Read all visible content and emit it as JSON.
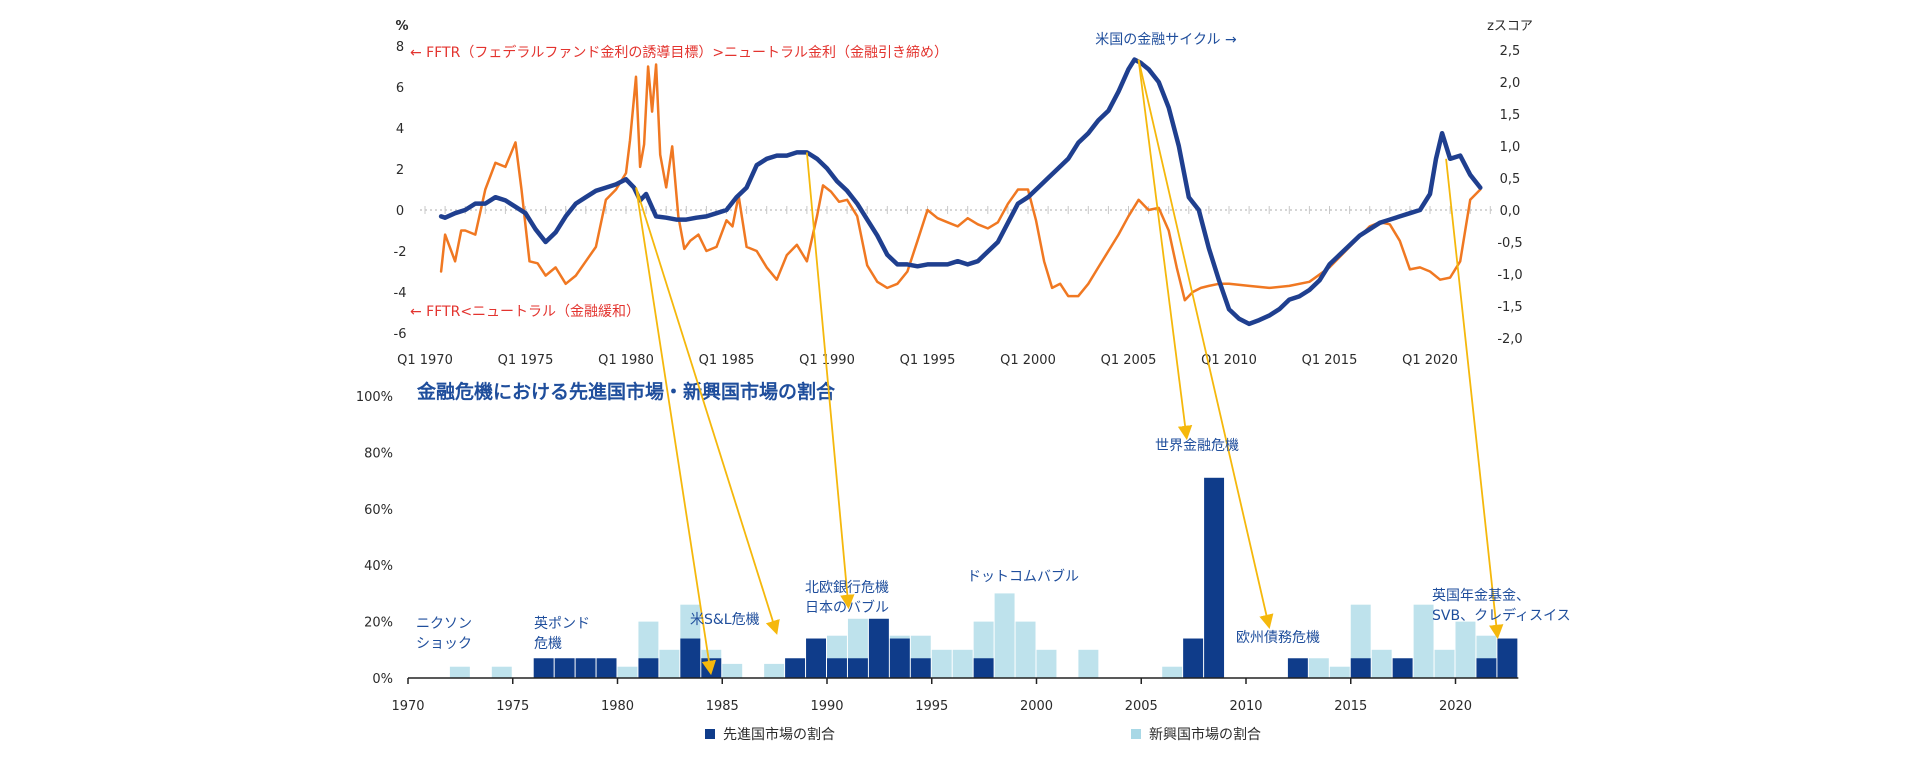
{
  "chart_data": [
    {
      "type": "line",
      "title": "",
      "unit_left": "%",
      "unit_right": "zスコア",
      "x_tick_labels": [
        "Q1 1970",
        "Q1 1975",
        "Q1 1980",
        "Q1 1985",
        "Q1 1990",
        "Q1 1995",
        "Q1 2000",
        "Q1 2005",
        "Q1 2010",
        "Q1 2015",
        "Q1 2020"
      ],
      "left_axis": {
        "ylim": [
          -6,
          8
        ],
        "ticks": [
          "8",
          "6",
          "4",
          "2",
          "0",
          "-2",
          "-4",
          "-6"
        ]
      },
      "right_axis": {
        "ylim": [
          -2.0,
          2.5
        ],
        "ticks": [
          "2,5",
          "2,0",
          "1,5",
          "1,0",
          "0,5",
          "0,0",
          "-0,5",
          "-1,0",
          "-1,5",
          "-2,0"
        ]
      },
      "annotations": {
        "upper_left": "← FFTR（フェデラルファンド金利の誘導目標）>ニュートラル金利（金融引き締め）",
        "lower_left": "← FFTR<ニュートラル（金融緩和）",
        "cycle_label": "米国の金融サイクル →"
      },
      "series": [
        {
          "name": "FFTR − ニュートラル金利 (%)",
          "axis": "left",
          "color": "#f07822",
          "x": [
            1970.8,
            1971.0,
            1971.5,
            1971.8,
            1972.0,
            1972.5,
            1973.0,
            1973.5,
            1974.0,
            1974.5,
            1974.8,
            1975.2,
            1975.6,
            1976.0,
            1976.5,
            1977.0,
            1977.5,
            1978.0,
            1978.5,
            1979.0,
            1979.5,
            1980.0,
            1980.2,
            1980.5,
            1980.7,
            1980.9,
            1981.1,
            1981.3,
            1981.5,
            1981.7,
            1982.0,
            1982.3,
            1982.6,
            1982.9,
            1983.2,
            1983.6,
            1984.0,
            1984.5,
            1985.0,
            1985.3,
            1985.6,
            1986.0,
            1986.5,
            1987.0,
            1987.5,
            1988.0,
            1988.5,
            1989.0,
            1989.5,
            1989.8,
            1990.2,
            1990.6,
            1991.0,
            1991.5,
            1992.0,
            1992.5,
            1993.0,
            1993.5,
            1994.0,
            1994.5,
            1995.0,
            1995.5,
            1996.0,
            1996.5,
            1997.0,
            1997.5,
            1998.0,
            1998.5,
            1999.0,
            1999.5,
            2000.0,
            2000.4,
            2000.8,
            2001.2,
            2001.6,
            2002.0,
            2002.5,
            2003.0,
            2003.5,
            2004.0,
            2004.5,
            2005.0,
            2005.5,
            2006.0,
            2006.5,
            2007.0,
            2007.4,
            2007.8,
            2008.2,
            2008.6,
            2009.0,
            2009.5,
            2010.0,
            2011.0,
            2012.0,
            2013.0,
            2014.0,
            2015.0,
            2016.0,
            2017.0,
            2017.5,
            2018.0,
            2018.5,
            2019.0,
            2019.5,
            2020.0,
            2020.5,
            2021.0,
            2021.5,
            2022.0,
            2022.5
          ],
          "values": [
            -3.0,
            -1.2,
            -2.5,
            -1.0,
            -1.0,
            -1.2,
            1.0,
            2.3,
            2.1,
            3.3,
            1.0,
            -2.5,
            -2.6,
            -3.2,
            -2.8,
            -3.6,
            -3.2,
            -2.5,
            -1.8,
            0.5,
            1.0,
            1.8,
            3.4,
            6.5,
            2.1,
            3.2,
            7.0,
            4.8,
            7.1,
            2.7,
            1.1,
            3.1,
            -0.3,
            -1.9,
            -1.5,
            -1.2,
            -2.0,
            -1.8,
            -0.5,
            -0.8,
            0.7,
            -1.8,
            -2.0,
            -2.8,
            -3.4,
            -2.2,
            -1.7,
            -2.5,
            -0.3,
            1.2,
            0.9,
            0.4,
            0.5,
            -0.3,
            -2.7,
            -3.5,
            -3.8,
            -3.6,
            -3.0,
            -1.5,
            0.0,
            -0.4,
            -0.6,
            -0.8,
            -0.4,
            -0.7,
            -0.9,
            -0.6,
            0.3,
            1.0,
            1.0,
            -0.5,
            -2.5,
            -3.8,
            -3.6,
            -4.2,
            -4.2,
            -3.6,
            -2.8,
            -2.0,
            -1.2,
            -0.3,
            0.5,
            0.0,
            0.1,
            -1.0,
            -2.8,
            -4.4,
            -4.0,
            -3.8,
            -3.7,
            -3.6,
            -3.6,
            -3.7,
            -3.8,
            -3.7,
            -3.5,
            -2.8,
            -1.8,
            -0.8,
            -0.6,
            -0.7,
            -1.5,
            -2.9,
            -2.8,
            -3.0,
            -3.4,
            -3.3,
            -2.5,
            0.5,
            1.0
          ]
        },
        {
          "name": "米国の金融サイクル (zスコア)",
          "axis": "right",
          "color": "#1f3f8f",
          "x": [
            1970.8,
            1971.0,
            1971.5,
            1972.0,
            1972.5,
            1973.0,
            1973.5,
            1974.0,
            1974.5,
            1975.0,
            1975.5,
            1976.0,
            1976.5,
            1977.0,
            1977.5,
            1978.0,
            1978.5,
            1979.0,
            1979.5,
            1980.0,
            1980.4,
            1980.7,
            1981.0,
            1981.5,
            1982.0,
            1982.5,
            1983.0,
            1983.5,
            1984.0,
            1984.5,
            1985.0,
            1985.5,
            1986.0,
            1986.5,
            1987.0,
            1987.5,
            1988.0,
            1988.5,
            1989.0,
            1989.5,
            1990.0,
            1990.5,
            1991.0,
            1991.5,
            1992.0,
            1992.5,
            1993.0,
            1993.5,
            1994.0,
            1994.5,
            1995.0,
            1995.5,
            1996.0,
            1996.5,
            1997.0,
            1997.5,
            1998.0,
            1998.5,
            1999.0,
            1999.5,
            2000.0,
            2000.5,
            2001.0,
            2001.5,
            2002.0,
            2002.5,
            2003.0,
            2003.5,
            2004.0,
            2004.5,
            2005.0,
            2005.3,
            2005.6,
            2006.0,
            2006.5,
            2007.0,
            2007.5,
            2008.0,
            2008.5,
            2009.0,
            2009.5,
            2010.0,
            2010.5,
            2011.0,
            2011.5,
            2012.0,
            2012.5,
            2013.0,
            2013.5,
            2014.0,
            2014.5,
            2015.0,
            2015.5,
            2016.0,
            2016.5,
            2017.0,
            2017.5,
            2018.0,
            2018.5,
            2019.0,
            2019.5,
            2020.0,
            2020.3,
            2020.6,
            2021.0,
            2021.5,
            2022.0,
            2022.5
          ],
          "values": [
            -0.1,
            -0.12,
            -0.05,
            0.0,
            0.1,
            0.1,
            0.2,
            0.15,
            0.05,
            -0.05,
            -0.3,
            -0.5,
            -0.35,
            -0.1,
            0.1,
            0.2,
            0.3,
            0.35,
            0.4,
            0.48,
            0.35,
            0.15,
            0.25,
            -0.1,
            -0.12,
            -0.15,
            -0.15,
            -0.12,
            -0.1,
            -0.05,
            0.0,
            0.2,
            0.35,
            0.7,
            0.8,
            0.85,
            0.85,
            0.9,
            0.9,
            0.8,
            0.65,
            0.45,
            0.3,
            0.1,
            -0.15,
            -0.4,
            -0.7,
            -0.85,
            -0.85,
            -0.88,
            -0.85,
            -0.85,
            -0.85,
            -0.8,
            -0.85,
            -0.8,
            -0.65,
            -0.5,
            -0.2,
            0.1,
            0.2,
            0.35,
            0.5,
            0.65,
            0.8,
            1.05,
            1.2,
            1.4,
            1.55,
            1.85,
            2.2,
            2.35,
            2.3,
            2.2,
            2.0,
            1.6,
            1.0,
            0.2,
            0.0,
            -0.6,
            -1.1,
            -1.55,
            -1.7,
            -1.78,
            -1.72,
            -1.65,
            -1.55,
            -1.4,
            -1.35,
            -1.25,
            -1.1,
            -0.85,
            -0.7,
            -0.55,
            -0.4,
            -0.3,
            -0.2,
            -0.15,
            -0.1,
            -0.05,
            0.0,
            0.25,
            0.8,
            1.2,
            0.8,
            0.85,
            0.55,
            0.35
          ]
        }
      ]
    },
    {
      "type": "bar",
      "title": "金融危機における先進国市場・新興国市場の割合",
      "ylim": [
        0,
        100
      ],
      "y_tick_labels": [
        "100%",
        "80%",
        "60%",
        "40%",
        "20%",
        "0%"
      ],
      "x_tick_labels": [
        "1970",
        "1975",
        "1980",
        "1985",
        "1990",
        "1995",
        "2000",
        "2005",
        "2010",
        "2015",
        "2020"
      ],
      "xlim": [
        1970,
        2023
      ],
      "legend": [
        "先進国市場の割合",
        "新興国市場の割合"
      ],
      "series": [
        {
          "name": "先進国市場の割合",
          "color": "#0f3c8a",
          "x": [
            1976,
            1977,
            1978,
            1979,
            1981,
            1983,
            1984,
            1988,
            1989,
            1990,
            1991,
            1992,
            1993,
            1994,
            1997,
            2007,
            2008,
            2012,
            2015,
            2017,
            2021,
            2022
          ],
          "values": [
            7,
            7,
            7,
            7,
            7,
            14,
            7,
            7,
            14,
            7,
            7,
            21,
            14,
            7,
            7,
            14,
            71,
            7,
            7,
            7,
            7,
            14
          ]
        },
        {
          "name": "新興国市場の割合",
          "color": "#a8d8e6",
          "x": [
            1972,
            1974,
            1980,
            1981,
            1982,
            1983,
            1984,
            1985,
            1987,
            1990,
            1991,
            1992,
            1993,
            1994,
            1995,
            1996,
            1997,
            1998,
            1999,
            2000,
            2002,
            2006,
            2007,
            2013,
            2014,
            2015,
            2016,
            2018,
            2019,
            2020,
            2021
          ],
          "values": [
            4,
            4,
            4,
            20,
            10,
            26,
            10,
            5,
            5,
            15,
            21,
            21,
            15,
            15,
            10,
            10,
            20,
            30,
            20,
            10,
            10,
            4,
            10,
            7,
            4,
            26,
            10,
            26,
            10,
            20,
            15
          ]
        }
      ]
    }
  ],
  "event_labels": [
    {
      "lines": [
        "ニクソン",
        "ショック"
      ]
    },
    {
      "lines": [
        "英ポンド",
        "危機"
      ]
    },
    {
      "lines": [
        "米S&L危機"
      ]
    },
    {
      "lines": [
        "北欧銀行危機",
        "日本のバブル"
      ]
    },
    {
      "lines": [
        "ドットコムバブル"
      ]
    },
    {
      "lines": [
        "世界金融危機"
      ]
    },
    {
      "lines": [
        "欧州債務危機"
      ]
    },
    {
      "lines": [
        "英国年金基金、",
        "SVB、クレディスイス"
      ]
    }
  ],
  "connectors": [
    {
      "from_year": 1980.5,
      "to_label": "米S&L危機"
    },
    {
      "from_year": 1980.5,
      "to_label": "米S&L危機 (2)"
    },
    {
      "from_year": 1989.0,
      "to_label": "北欧銀行危機"
    },
    {
      "from_year": 2005.5,
      "to_label": "世界金融危機"
    },
    {
      "from_year": 2005.5,
      "to_label": "欧州債務危機"
    },
    {
      "from_year": 2020.8,
      "to_label": "英国年金基金、SVB、クレディスイス"
    }
  ],
  "colors": {
    "accent_red": "#e3342f",
    "navy": "#1f4e9c",
    "connector": "#f5b80c"
  }
}
